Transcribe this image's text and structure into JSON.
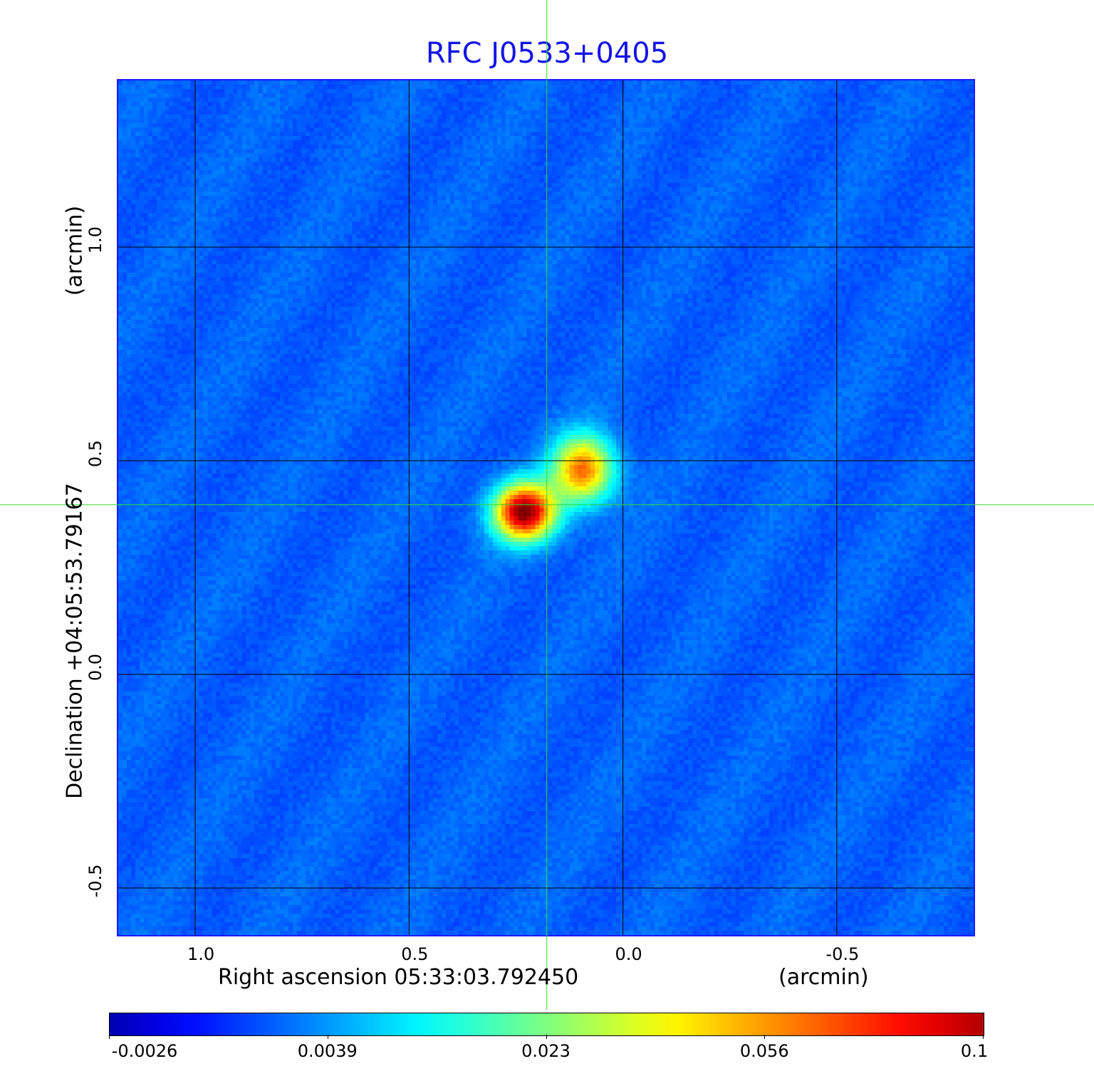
{
  "chart_data": {
    "type": "heatmap",
    "title": "RFC J0533+0405",
    "xlabel": "Right ascension  05:33:03.792450",
    "xunit": "(arcmin)",
    "ylabel": "Declination  +04:05:53.79167",
    "yunit": "(arcmin)",
    "x_ticks": [
      1.0,
      0.5,
      0.0,
      -0.5
    ],
    "x_tick_labels": [
      "1.0",
      "0.5",
      "0.0",
      "-0.5"
    ],
    "y_ticks": [
      1.0,
      0.5,
      0.0,
      -0.5
    ],
    "y_tick_labels": [
      "1.0",
      "0.5",
      "0.0",
      "-0.5"
    ],
    "xlim": [
      1.18,
      -0.82
    ],
    "ylim": [
      -0.61,
      1.39
    ],
    "grid": true,
    "colormap": "jet",
    "colorbar": {
      "ticks": [
        -0.0026,
        0.0039,
        0.023,
        0.056,
        0.1
      ],
      "tick_labels": [
        "-0.0026",
        "0.0039",
        "0.023",
        "0.056",
        "0.1"
      ],
      "range": [
        -0.0026,
        0.1
      ],
      "placement": "bottom"
    },
    "crosshair": {
      "x": 0.178,
      "y": 0.397
    },
    "components": [
      {
        "x": 0.23,
        "y": 0.38,
        "peak": 0.1
      },
      {
        "x": 0.093,
        "y": 0.48,
        "peak": 0.07
      }
    ],
    "colors": {
      "title": "#1414e6",
      "frame": "#1a1aff",
      "grid": "#000000",
      "crosshair": "#33dd33"
    }
  }
}
